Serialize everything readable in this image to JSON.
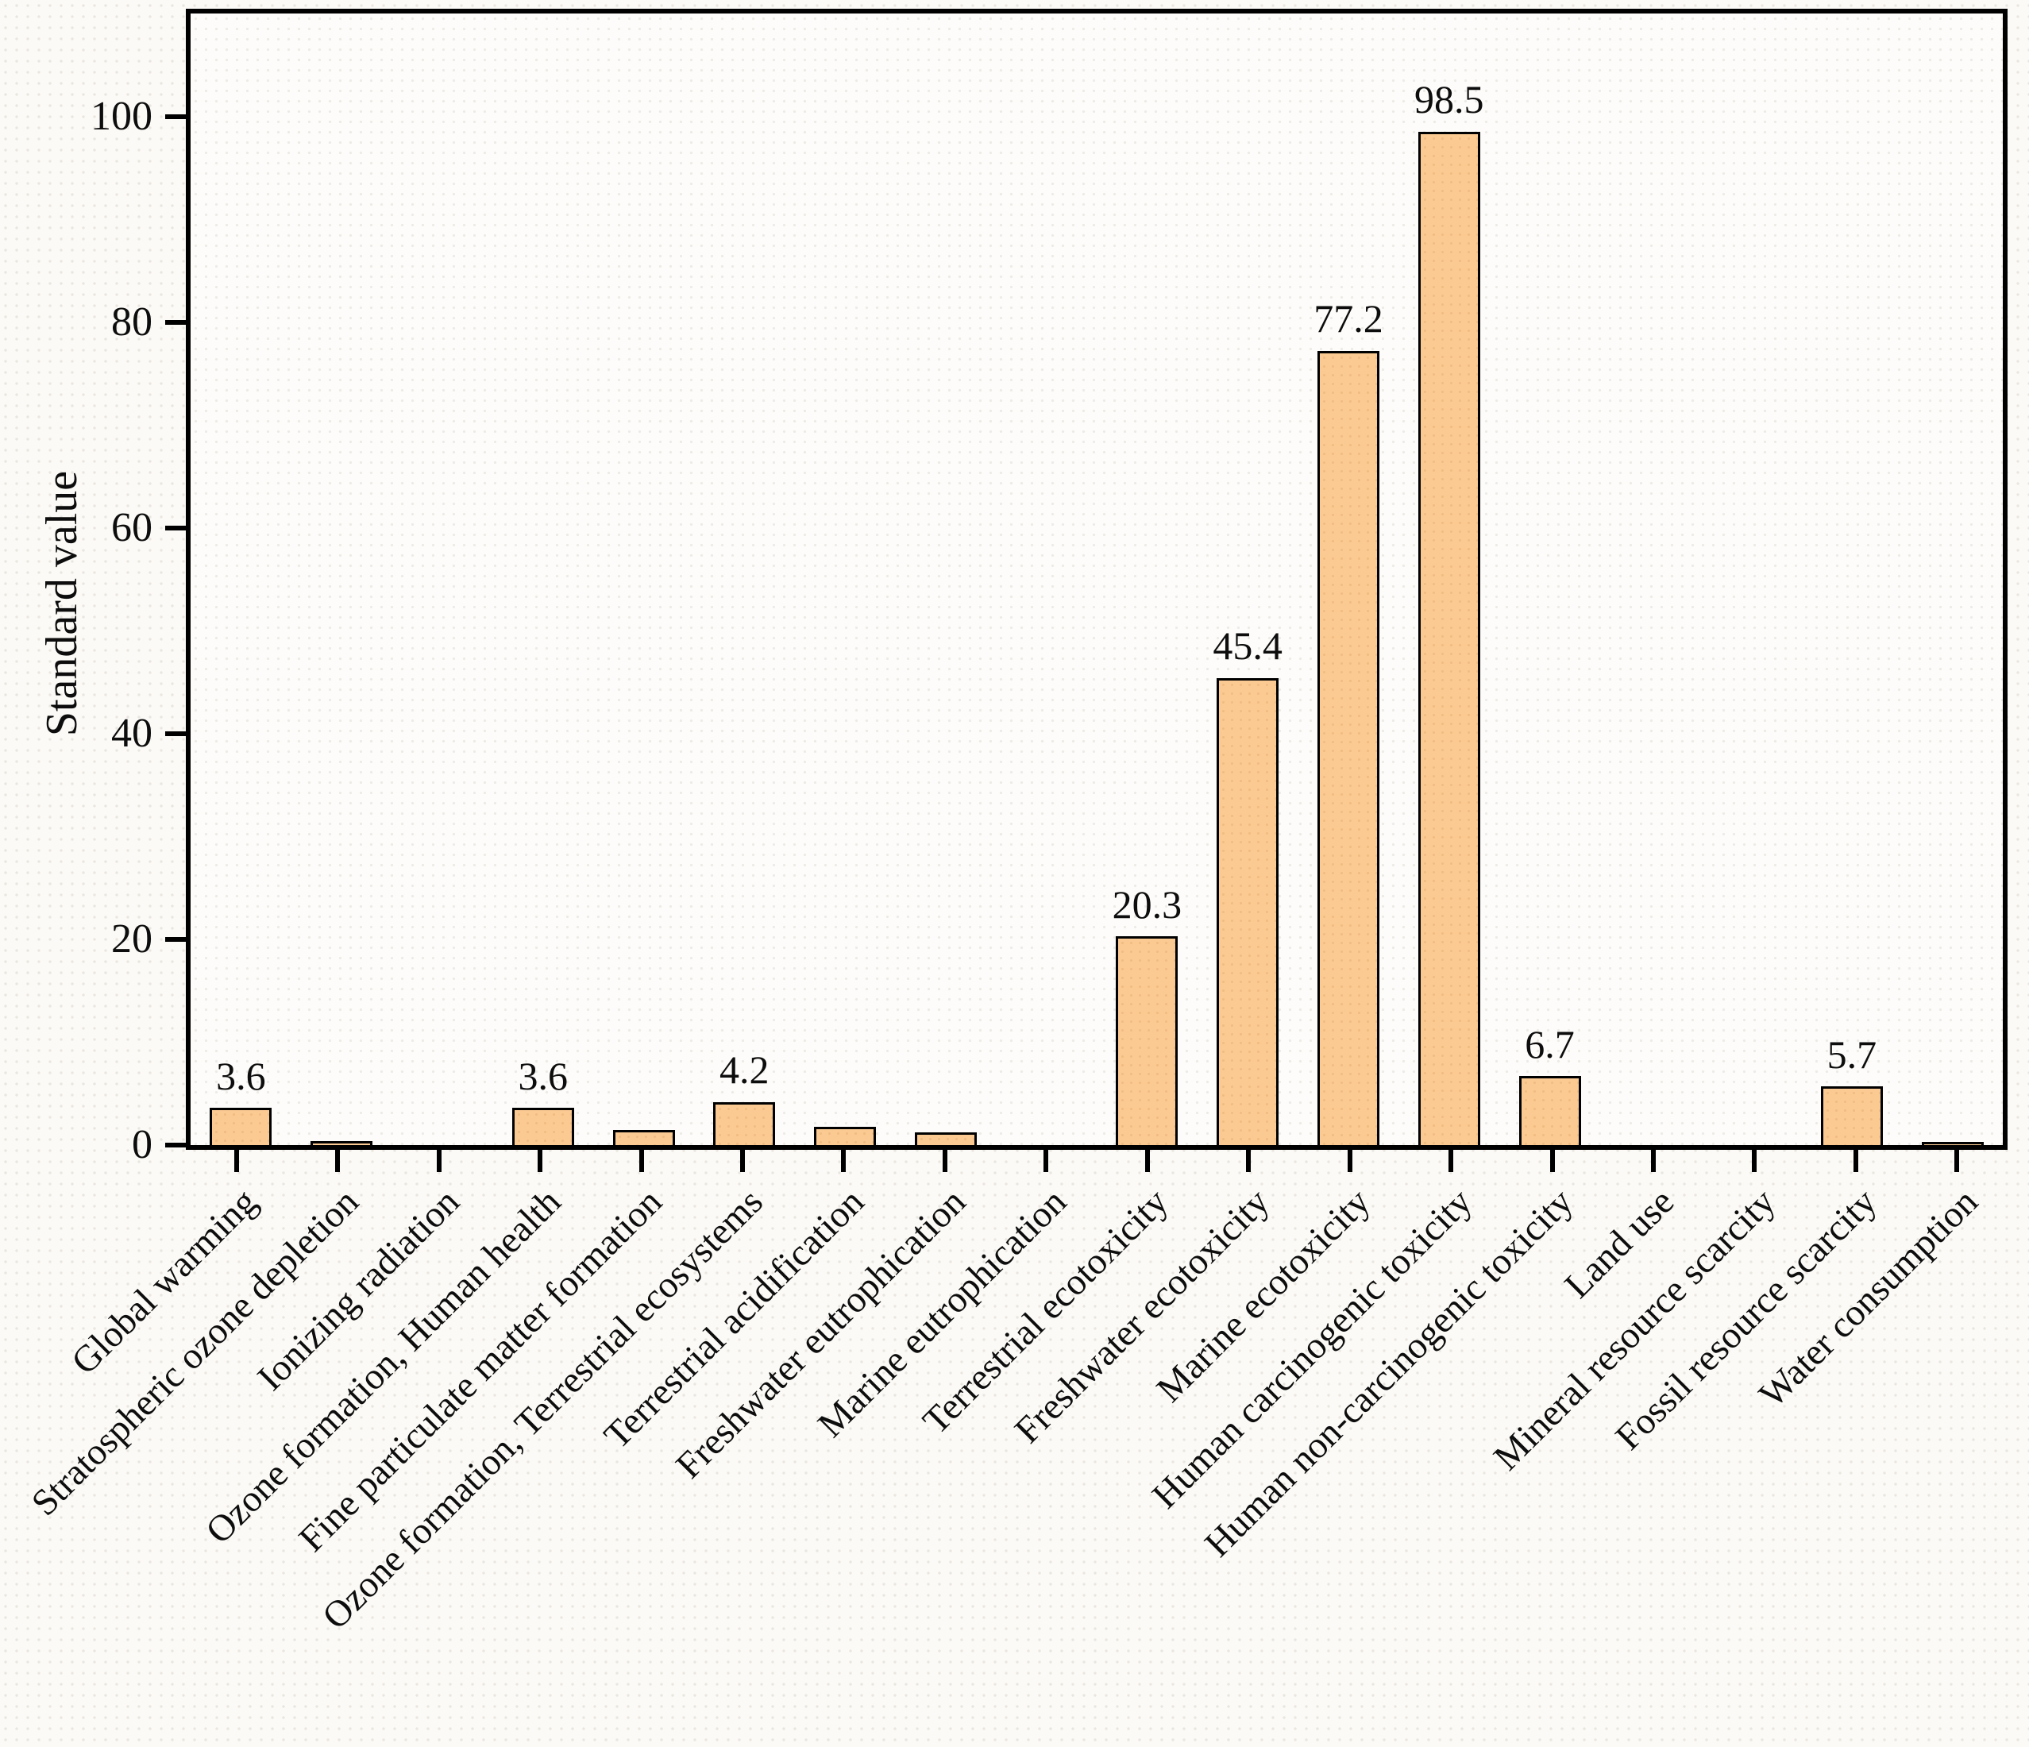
{
  "figure": {
    "background_color": "#fbfaf7",
    "frame_color": "#000000",
    "text_color": "#0d0d0d"
  },
  "y_axis": {
    "title": "Standard value",
    "ticks": [
      0,
      20,
      40,
      60,
      80,
      100
    ]
  },
  "chart_data": {
    "type": "bar",
    "title": "",
    "xlabel": "",
    "ylabel": "Standard value",
    "ylim": [
      0,
      110
    ],
    "grid": false,
    "legend": "none",
    "bar_color": "#fbca93",
    "bar_border_color": "#000000",
    "categories": [
      "Global warming",
      "Stratospheric ozone depletion",
      "Ionizing radiation",
      "Ozone formation, Human health",
      "Fine particulate matter formation",
      "Ozone formation, Terrestrial ecosystems",
      "Terrestrial acidification",
      "Freshwater eutrophication",
      "Marine eutrophication",
      "Terrestrial ecotoxicity",
      "Freshwater ecotoxicity",
      "Marine ecotoxicity",
      "Human carcinogenic toxicity",
      "Human non-carcinogenic toxicity",
      "Land use",
      "Mineral resource scarcity",
      "Fossil resource scarcity",
      "Water consumption"
    ],
    "values": [
      3.6,
      0.4,
      0,
      3.6,
      1.5,
      4.2,
      1.8,
      1.2,
      0,
      20.3,
      45.4,
      77.2,
      98.5,
      6.7,
      0,
      0,
      5.7,
      0.3
    ],
    "value_labels": [
      "3.6",
      null,
      null,
      "3.6",
      null,
      "4.2",
      null,
      null,
      null,
      "20.3",
      "45.4",
      "77.2",
      "98.5",
      "6.7",
      null,
      null,
      "5.7",
      null
    ]
  }
}
